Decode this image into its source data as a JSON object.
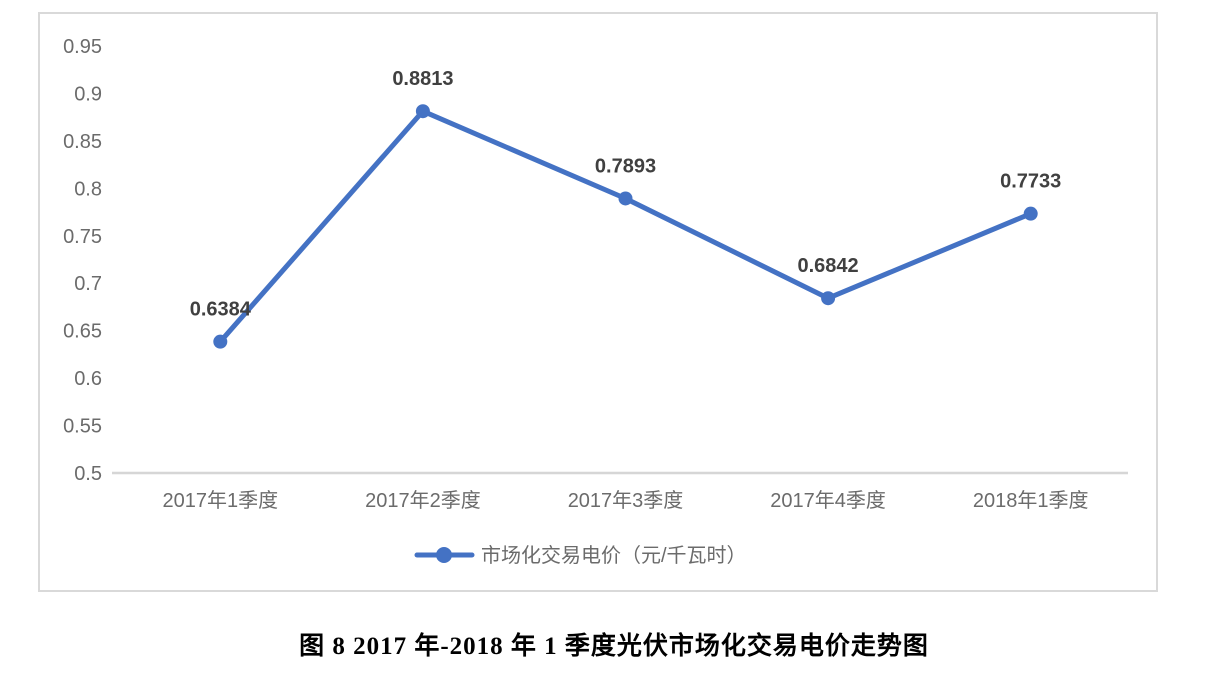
{
  "figure": {
    "caption": "图 8 2017 年-2018 年 1 季度光伏市场化交易电价走势图"
  },
  "chart_data": {
    "type": "line",
    "title": "",
    "xlabel": "",
    "ylabel": "",
    "categories": [
      "2017年1季度",
      "2017年2季度",
      "2017年3季度",
      "2017年4季度",
      "2018年1季度"
    ],
    "series": [
      {
        "name": "市场化交易电价（元/千瓦时）",
        "values": [
          0.6384,
          0.8813,
          0.7893,
          0.6842,
          0.7733
        ],
        "labels": [
          "0.6384",
          "0.8813",
          "0.7893",
          "0.6842",
          "0.7733"
        ],
        "color": "#4472C4",
        "marker": "circle"
      }
    ],
    "ylim": [
      0.5,
      0.95
    ],
    "ytick_labels": [
      "0.5",
      "0.55",
      "0.6",
      "0.65",
      "0.7",
      "0.75",
      "0.8",
      "0.85",
      "0.9",
      "0.95"
    ],
    "ytick_step": 0.05,
    "grid": false,
    "legend_position": "bottom"
  },
  "colors": {
    "line": "#4472C4",
    "data_label": "#404040",
    "axis_label": "#6b6b6b",
    "axis_line": "#D6D6D6",
    "frame_border": "#D9D9D9"
  }
}
